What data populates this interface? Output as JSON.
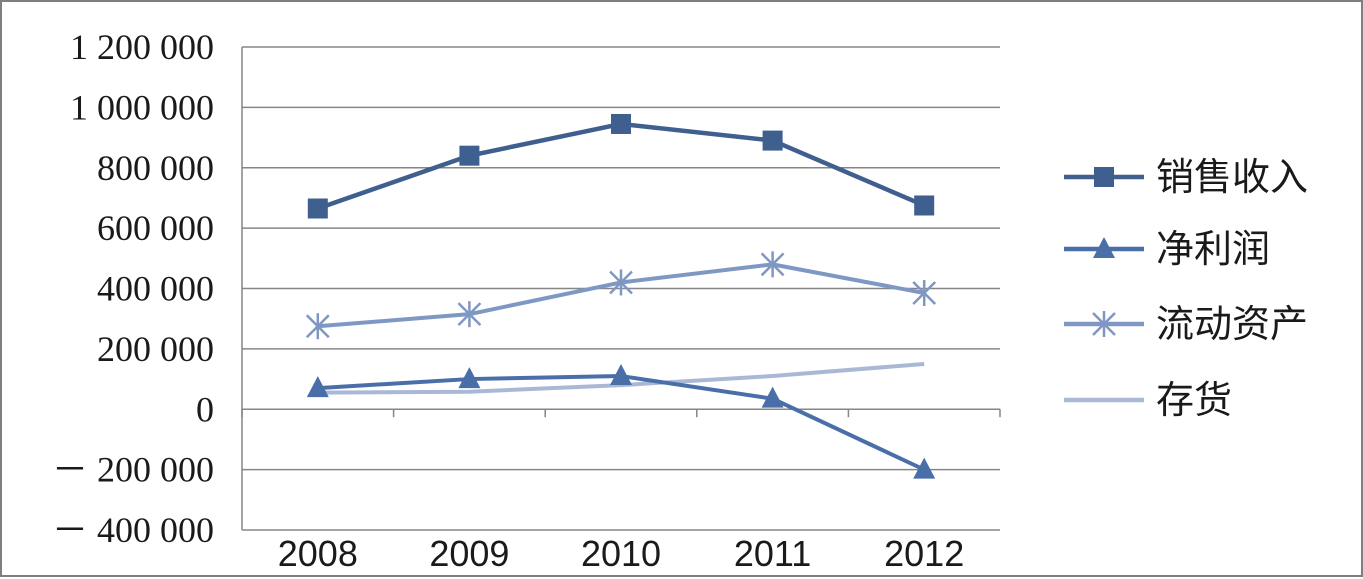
{
  "chart_data": {
    "type": "line",
    "categories": [
      "2008",
      "2009",
      "2010",
      "2011",
      "2012"
    ],
    "y_ticks": [
      -400000,
      -200000,
      0,
      200000,
      400000,
      600000,
      800000,
      1000000,
      1200000
    ],
    "y_tick_labels": [
      "－ 400 000",
      "－ 200 000",
      "0",
      "200 000",
      "400 000",
      "600 000",
      "800 000",
      "1 000 000",
      "1 200 000"
    ],
    "ylim": [
      -400000,
      1200000
    ],
    "grid": "horizontal",
    "legend_position": "right",
    "title": "",
    "xlabel": "",
    "ylabel": "",
    "series": [
      {
        "name": "销售收入",
        "marker": "square",
        "color": "#3f5f8f",
        "values": [
          665000,
          840000,
          945000,
          890000,
          675000
        ]
      },
      {
        "name": "净利润",
        "marker": "triangle",
        "color": "#4a6fa8",
        "values": [
          70000,
          100000,
          110000,
          35000,
          -200000
        ]
      },
      {
        "name": "流动资产",
        "marker": "star",
        "color": "#7f97c3",
        "values": [
          275000,
          315000,
          420000,
          480000,
          385000
        ]
      },
      {
        "name": "存货",
        "marker": "none",
        "color": "#a9b8d4",
        "values": [
          55000,
          58000,
          80000,
          110000,
          150000
        ]
      }
    ]
  }
}
